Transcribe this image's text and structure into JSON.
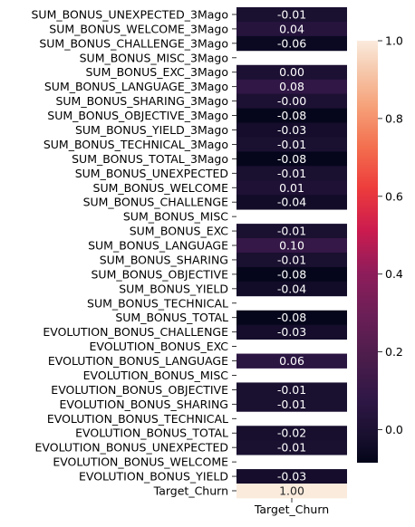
{
  "chart_data": {
    "type": "heatmap",
    "columns": [
      "Target_Churn"
    ],
    "rows": [
      "SUM_BONUS_UNEXPECTED_3Mago",
      "SUM_BONUS_WELCOME_3Mago",
      "SUM_BONUS_CHALLENGE_3Mago",
      "SUM_BONUS_MISC_3Mago",
      "SUM_BONUS_EXC_3Mago",
      "SUM_BONUS_LANGUAGE_3Mago",
      "SUM_BONUS_SHARING_3Mago",
      "SUM_BONUS_OBJECTIVE_3Mago",
      "SUM_BONUS_YIELD_3Mago",
      "SUM_BONUS_TECHNICAL_3Mago",
      "SUM_BONUS_TOTAL_3Mago",
      "SUM_BONUS_UNEXPECTED",
      "SUM_BONUS_WELCOME",
      "SUM_BONUS_CHALLENGE",
      "SUM_BONUS_MISC",
      "SUM_BONUS_EXC",
      "SUM_BONUS_LANGUAGE",
      "SUM_BONUS_SHARING",
      "SUM_BONUS_OBJECTIVE",
      "SUM_BONUS_YIELD",
      "SUM_BONUS_TECHNICAL",
      "SUM_BONUS_TOTAL",
      "EVOLUTION_BONUS_CHALLENGE",
      "EVOLUTION_BONUS_EXC",
      "EVOLUTION_BONUS_LANGUAGE",
      "EVOLUTION_BONUS_MISC",
      "EVOLUTION_BONUS_OBJECTIVE",
      "EVOLUTION_BONUS_SHARING",
      "EVOLUTION_BONUS_TECHNICAL",
      "EVOLUTION_BONUS_TOTAL",
      "EVOLUTION_BONUS_UNEXPECTED",
      "EVOLUTION_BONUS_WELCOME",
      "EVOLUTION_BONUS_YIELD",
      "Target_Churn"
    ],
    "values": [
      -0.01,
      0.04,
      -0.06,
      null,
      0.0,
      0.08,
      -0.0,
      -0.08,
      -0.03,
      -0.01,
      -0.08,
      -0.01,
      0.01,
      -0.04,
      null,
      -0.01,
      0.1,
      -0.01,
      -0.08,
      -0.04,
      null,
      -0.08,
      -0.03,
      null,
      0.06,
      null,
      -0.01,
      -0.01,
      null,
      -0.02,
      -0.01,
      null,
      -0.03,
      1.0
    ],
    "labels": [
      "-0.01",
      "0.04",
      "-0.06",
      "",
      "0.00",
      "0.08",
      "-0.00",
      "-0.08",
      "-0.03",
      "-0.01",
      "-0.08",
      "-0.01",
      "0.01",
      "-0.04",
      "",
      "-0.01",
      "0.10",
      "-0.01",
      "-0.08",
      "-0.04",
      "",
      "-0.08",
      "-0.03",
      "",
      "0.06",
      "",
      "-0.01",
      "-0.01",
      "",
      "-0.02",
      "-0.01",
      "",
      "-0.03",
      "1.00"
    ],
    "colorbar": {
      "range": [
        -0.085,
        1.0
      ],
      "ticks": [
        0.0,
        0.2,
        0.4,
        0.6,
        0.8,
        1.0
      ],
      "tick_labels": [
        "0.0",
        "0.2",
        "0.4",
        "0.6",
        "0.8",
        "1.0"
      ]
    },
    "colormap": "rocket",
    "colormap_stops": [
      [
        0.0,
        "#03051a"
      ],
      [
        0.06,
        "#180f2e"
      ],
      [
        0.15,
        "#2f1746"
      ],
      [
        0.25,
        "#4c1d4b"
      ],
      [
        0.35,
        "#6b1f56"
      ],
      [
        0.45,
        "#8e1d5b"
      ],
      [
        0.55,
        "#cb1b4f"
      ],
      [
        0.65,
        "#ed3c3c"
      ],
      [
        0.75,
        "#f3704f"
      ],
      [
        0.85,
        "#f6a47c"
      ],
      [
        0.93,
        "#f6c9ad"
      ],
      [
        1.0,
        "#faebdd"
      ]
    ]
  }
}
